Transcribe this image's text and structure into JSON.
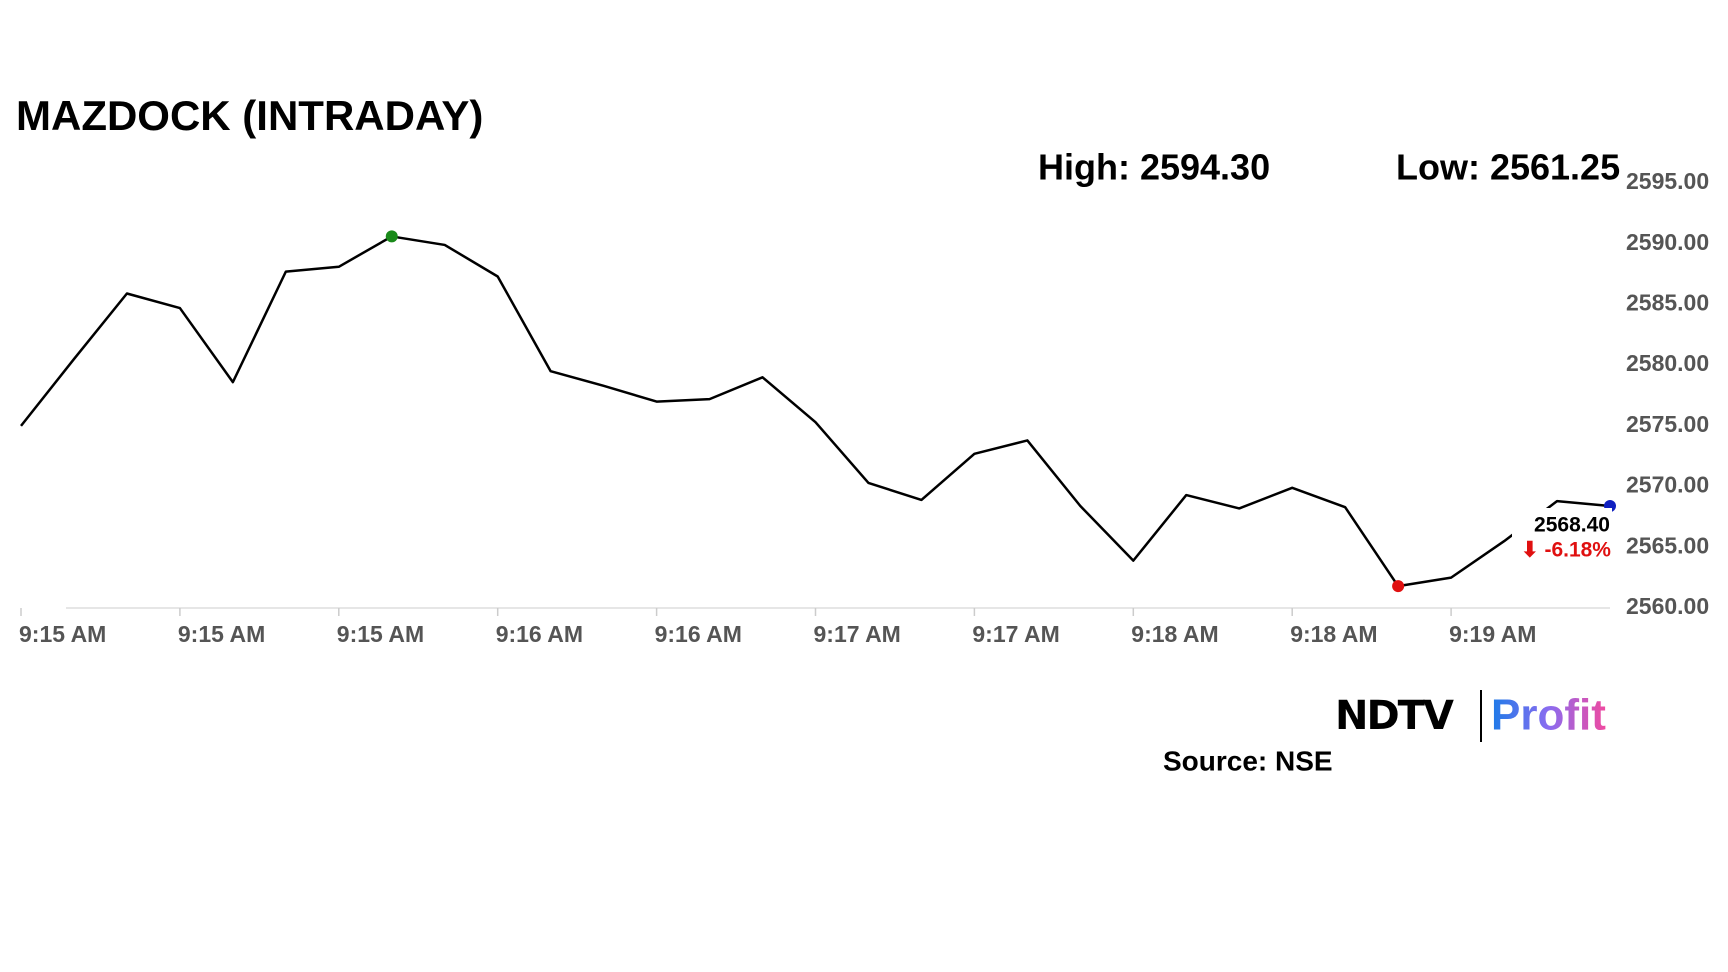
{
  "chart_data": {
    "type": "line",
    "title": "MAZDOCK (INTRADAY)",
    "high_label": "High: 2594.30",
    "low_label": "Low: 2561.25",
    "last_value_label": "2568.40",
    "change_label": "⬇ -6.18%",
    "source": "Source: NSE",
    "logo": {
      "brand": "NDTV",
      "product": "Profit"
    },
    "categories": [
      null,
      null,
      null,
      null,
      null,
      null,
      null,
      null,
      null,
      null,
      null,
      null,
      null,
      null,
      null,
      null,
      null,
      null,
      null,
      null,
      null,
      null,
      null,
      null,
      null,
      null,
      null,
      null,
      null,
      null,
      null
    ],
    "series": [
      {
        "color": "#000000",
        "values": [
          2575.0,
          2580.5,
          2585.9,
          2584.7,
          2578.6,
          2587.7,
          2588.1,
          2590.6,
          2589.9,
          2587.3,
          2579.5,
          2578.3,
          2577.0,
          2577.2,
          2579.0,
          2575.3,
          2570.3,
          2568.9,
          2572.7,
          2573.8,
          2568.4,
          2563.9,
          2569.3,
          2568.2,
          2569.9,
          2568.3,
          2561.8,
          2562.5,
          2565.5,
          2568.8,
          2568.4
        ]
      }
    ],
    "markers": [
      {
        "index": 7,
        "color": "#1a8a1a"
      },
      {
        "index": 26,
        "color": "#e01010"
      },
      {
        "index": 30,
        "color": "#1020c0"
      }
    ],
    "xticks": [
      {
        "value": 0,
        "label": "9:15 AM"
      },
      {
        "value": 3,
        "label": "9:15 AM"
      },
      {
        "value": 6,
        "label": "9:15 AM"
      },
      {
        "value": 9,
        "label": "9:16 AM"
      },
      {
        "value": 12,
        "label": "9:16 AM"
      },
      {
        "value": 15,
        "label": "9:17 AM"
      },
      {
        "value": 18,
        "label": "9:17 AM"
      },
      {
        "value": 21,
        "label": "9:18 AM"
      },
      {
        "value": 24,
        "label": "9:18 AM"
      },
      {
        "value": 27,
        "label": "9:19 AM"
      }
    ],
    "ylim": [
      2560,
      2595
    ],
    "yticks": [
      {
        "value": 2560,
        "label": "2560.00"
      },
      {
        "value": 2565,
        "label": "2565.00"
      },
      {
        "value": 2570,
        "label": "2570.00"
      },
      {
        "value": 2575,
        "label": "2575.00"
      },
      {
        "value": 2580,
        "label": "2580.00"
      },
      {
        "value": 2585,
        "label": "2585.00"
      },
      {
        "value": 2590,
        "label": "2590.00"
      },
      {
        "value": 2595,
        "label": "2595.00"
      }
    ],
    "grid": false
  }
}
